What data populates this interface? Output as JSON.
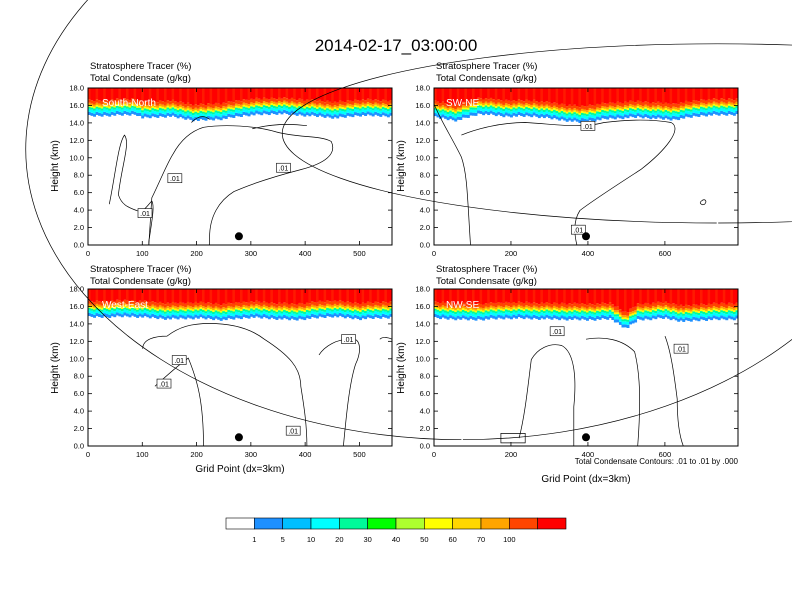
{
  "chart_data": {
    "type": "heatmap",
    "title": "2014-02-17_03:00:00",
    "field_titles": [
      "Stratosphere Tracer   (%)",
      "Total Condensate   (g/kg)"
    ],
    "xlabel": "Grid Point (dx=3km)",
    "ylabel": "Height (km)",
    "contour_note": "Total Condensate Contours: .01 to .01 by .000",
    "contour_label": ".01",
    "colorbar": {
      "levels": [
        "1",
        "5",
        "10",
        "20",
        "30",
        "40",
        "50",
        "60",
        "70",
        "100"
      ],
      "colors": [
        "#ffffff",
        "#1e90ff",
        "#00bfff",
        "#00ffff",
        "#00fa9a",
        "#00ff00",
        "#adff2f",
        "#ffff00",
        "#ffd700",
        "#ffa500",
        "#ff4500",
        "#ff0000"
      ]
    },
    "panels": [
      {
        "name": "South-North",
        "xlim": [
          0,
          560
        ],
        "ylim": [
          0,
          18
        ],
        "xticks": [
          "0",
          "100",
          "200",
          "300",
          "400",
          "500"
        ],
        "yticks": [
          "0.0",
          "2.0",
          "4.0",
          "6.0",
          "8.0",
          "10.0",
          "12.0",
          "14.0",
          "16.0",
          "18.0"
        ],
        "marker": {
          "x": 278,
          "y": 1.0
        },
        "tropopause": [
          [
            0,
            15.3
          ],
          [
            90,
            15.5
          ],
          [
            100,
            15.1
          ],
          [
            150,
            15.3
          ],
          [
            200,
            14.8
          ],
          [
            250,
            15.0
          ],
          [
            290,
            15.4
          ],
          [
            350,
            15.6
          ],
          [
            420,
            15.3
          ],
          [
            460,
            15.1
          ],
          [
            500,
            15.4
          ],
          [
            560,
            15.3
          ]
        ],
        "labels": [
          {
            "x": 160,
            "y": 7.6
          },
          {
            "x": 360,
            "y": 8.8
          },
          {
            "x": 105,
            "y": 3.6
          }
        ]
      },
      {
        "name": "SW-NE",
        "xlim": [
          0,
          790
        ],
        "ylim": [
          0,
          18
        ],
        "xticks": [
          "0",
          "200",
          "400",
          "600"
        ],
        "yticks": [
          "0.0",
          "2.0",
          "4.0",
          "6.0",
          "8.0",
          "10.0",
          "12.0",
          "14.0",
          "16.0",
          "18.0"
        ],
        "marker": {
          "x": 395,
          "y": 1.0
        },
        "tropopause": [
          [
            0,
            15.2
          ],
          [
            60,
            14.8
          ],
          [
            120,
            15.6
          ],
          [
            180,
            15.3
          ],
          [
            260,
            15.3
          ],
          [
            310,
            15.0
          ],
          [
            380,
            14.6
          ],
          [
            450,
            15.0
          ],
          [
            530,
            15.2
          ],
          [
            620,
            14.9
          ],
          [
            700,
            15.4
          ],
          [
            790,
            15.5
          ]
        ],
        "labels": [
          {
            "x": 400,
            "y": 13.6
          },
          {
            "x": 375,
            "y": 1.7
          }
        ]
      },
      {
        "name": "West-East",
        "xlim": [
          0,
          560
        ],
        "ylim": [
          0,
          18
        ],
        "xticks": [
          "0",
          "100",
          "200",
          "300",
          "400",
          "500"
        ],
        "yticks": [
          "0.0",
          "2.0",
          "4.0",
          "6.0",
          "8.0",
          "10.0",
          "12.0",
          "14.0",
          "16.0",
          "18.0"
        ],
        "marker": {
          "x": 278,
          "y": 1.0
        },
        "tropopause": [
          [
            0,
            15.3
          ],
          [
            80,
            15.4
          ],
          [
            150,
            15.1
          ],
          [
            200,
            15.2
          ],
          [
            250,
            15.0
          ],
          [
            300,
            15.3
          ],
          [
            380,
            15.0
          ],
          [
            450,
            15.4
          ],
          [
            500,
            15.1
          ],
          [
            560,
            15.3
          ]
        ],
        "labels": [
          {
            "x": 168,
            "y": 9.8
          },
          {
            "x": 140,
            "y": 7.1
          },
          {
            "x": 480,
            "y": 12.2
          },
          {
            "x": 378,
            "y": 1.7
          }
        ]
      },
      {
        "name": "NW-SE",
        "xlim": [
          0,
          790
        ],
        "ylim": [
          0,
          18
        ],
        "xticks": [
          "0",
          "200",
          "400",
          "600"
        ],
        "yticks": [
          "0.0",
          "2.0",
          "4.0",
          "6.0",
          "8.0",
          "10.0",
          "12.0",
          "14.0",
          "16.0",
          "18.0"
        ],
        "marker": {
          "x": 395,
          "y": 1.0
        },
        "tropopause": [
          [
            0,
            15.2
          ],
          [
            100,
            15.0
          ],
          [
            200,
            15.2
          ],
          [
            300,
            15.1
          ],
          [
            400,
            15.0
          ],
          [
            460,
            15.1
          ],
          [
            500,
            14.0
          ],
          [
            530,
            15.0
          ],
          [
            600,
            15.2
          ],
          [
            650,
            14.8
          ],
          [
            700,
            15.0
          ],
          [
            790,
            15.1
          ]
        ],
        "labels": [
          {
            "x": 320,
            "y": 13.1
          },
          {
            "x": 642,
            "y": 11.1
          }
        ]
      }
    ]
  }
}
